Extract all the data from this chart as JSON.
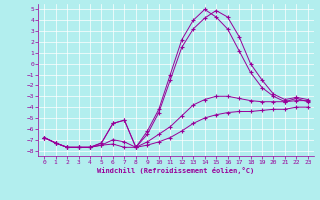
{
  "xlabel": "Windchill (Refroidissement éolien,°C)",
  "xlim": [
    -0.5,
    23.5
  ],
  "ylim": [
    -8.5,
    5.5
  ],
  "xticks": [
    0,
    1,
    2,
    3,
    4,
    5,
    6,
    7,
    8,
    9,
    10,
    11,
    12,
    13,
    14,
    15,
    16,
    17,
    18,
    19,
    20,
    21,
    22,
    23
  ],
  "yticks": [
    5,
    4,
    3,
    2,
    1,
    0,
    -1,
    -2,
    -3,
    -4,
    -5,
    -6,
    -7,
    -8
  ],
  "background_color": "#b2eeee",
  "line_color": "#990099",
  "grid_color": "#ffffff",
  "line1_x": [
    0,
    1,
    2,
    3,
    4,
    5,
    6,
    7,
    8,
    9,
    10,
    11,
    12,
    13,
    14,
    15,
    16,
    17,
    18,
    19,
    20,
    21,
    22,
    23
  ],
  "line1_y": [
    -6.8,
    -7.3,
    -7.7,
    -7.7,
    -7.7,
    -7.5,
    -7.4,
    -7.7,
    -7.7,
    -7.5,
    -7.2,
    -6.8,
    -6.2,
    -5.5,
    -5.0,
    -4.7,
    -4.5,
    -4.4,
    -4.4,
    -4.3,
    -4.2,
    -4.2,
    -4.0,
    -4.0
  ],
  "line2_x": [
    0,
    1,
    2,
    3,
    4,
    5,
    6,
    7,
    8,
    9,
    10,
    11,
    12,
    13,
    14,
    15,
    16,
    17,
    18,
    19,
    20,
    21,
    22,
    23
  ],
  "line2_y": [
    -6.8,
    -7.3,
    -7.7,
    -7.7,
    -7.7,
    -7.5,
    -7.0,
    -7.2,
    -7.7,
    -7.2,
    -6.5,
    -5.8,
    -4.8,
    -3.8,
    -3.3,
    -3.0,
    -3.0,
    -3.2,
    -3.4,
    -3.5,
    -3.5,
    -3.5,
    -3.4,
    -3.4
  ],
  "line3_x": [
    0,
    1,
    2,
    3,
    4,
    5,
    6,
    7,
    8,
    9,
    10,
    11,
    12,
    13,
    14,
    15,
    16,
    17,
    18,
    19,
    20,
    21,
    22,
    23
  ],
  "line3_y": [
    -6.8,
    -7.3,
    -7.7,
    -7.7,
    -7.7,
    -7.3,
    -5.5,
    -5.2,
    -7.7,
    -6.5,
    -4.5,
    -1.5,
    1.5,
    3.2,
    4.2,
    4.9,
    4.3,
    2.5,
    0.0,
    -1.5,
    -2.8,
    -3.3,
    -3.1,
    -3.3
  ],
  "line4_x": [
    0,
    1,
    2,
    3,
    4,
    5,
    6,
    7,
    8,
    9,
    10,
    11,
    12,
    13,
    14,
    15,
    16,
    17,
    18,
    19,
    20,
    21,
    22,
    23
  ],
  "line4_y": [
    -6.8,
    -7.3,
    -7.7,
    -7.7,
    -7.7,
    -7.3,
    -5.5,
    -5.2,
    -7.7,
    -6.2,
    -4.2,
    -1.0,
    2.2,
    4.0,
    5.0,
    4.3,
    3.2,
    1.2,
    -0.8,
    -2.2,
    -3.0,
    -3.5,
    -3.2,
    -3.5
  ]
}
